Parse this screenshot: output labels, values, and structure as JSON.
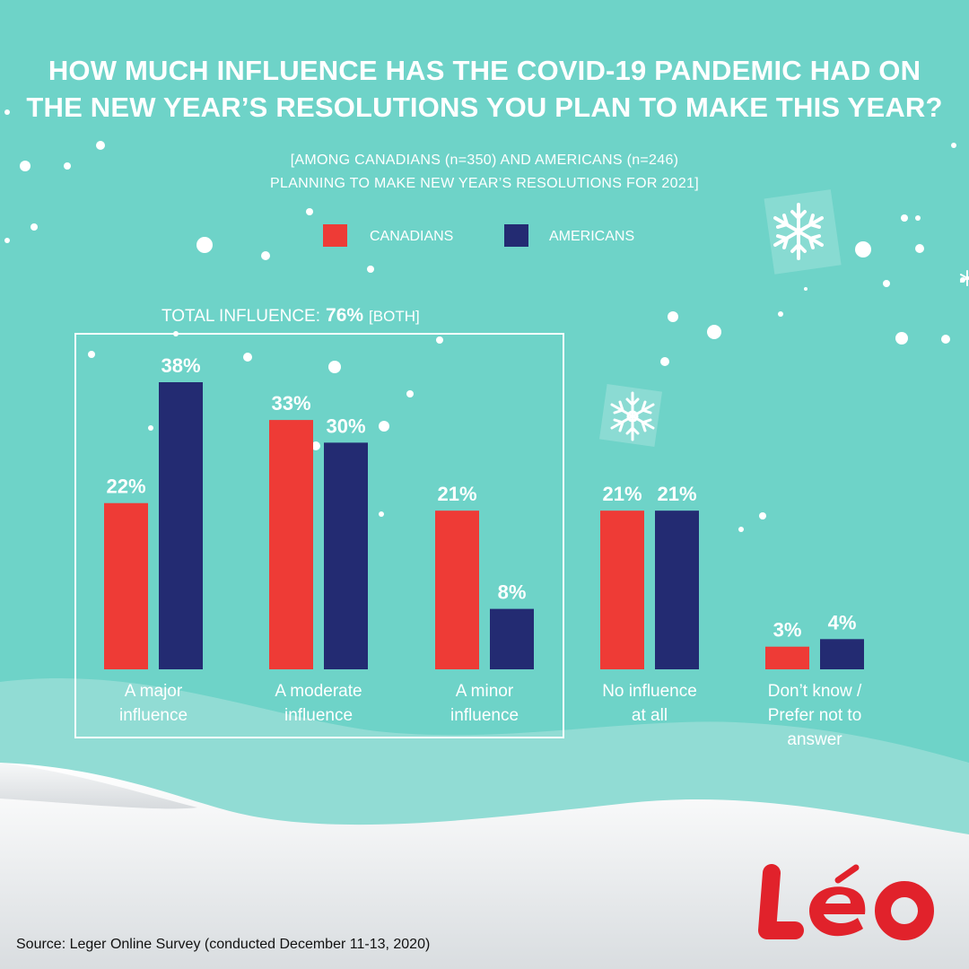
{
  "header": {
    "title_line1": "HOW MUCH INFLUENCE HAS THE COVID-19 PANDEMIC HAD ON",
    "title_line2": "THE NEW YEAR’S RESOLUTIONS YOU PLAN TO MAKE THIS YEAR?",
    "subtitle_line1": "[AMONG CANADIANS (n=350) AND AMERICANS (n=246)",
    "subtitle_line2": "PLANNING TO MAKE NEW YEAR’S RESOLUTIONS FOR 2021]"
  },
  "total_influence": {
    "label": "TOTAL INFLUENCE:",
    "value": "76%",
    "note": "[BOTH]"
  },
  "source": "Source: Leger Online Survey (conducted December 11-13, 2020)",
  "logo_text": "Léo",
  "colors": {
    "canadians": "#ee3b36",
    "americans": "#232b72",
    "background": "#6ed3c8",
    "text": "#ffffff"
  },
  "chart_data": {
    "type": "bar",
    "categories": [
      [
        "A major",
        "influence"
      ],
      [
        "A moderate",
        "influence"
      ],
      [
        "A minor",
        "influence"
      ],
      [
        "No influence",
        "at all"
      ],
      [
        "Don’t know /",
        "Prefer not to",
        "answer"
      ]
    ],
    "series": [
      {
        "name": "CANADIANS",
        "values": [
          22,
          33,
          21,
          21,
          3
        ],
        "labels": [
          "22%",
          "33%",
          "21%",
          "21%",
          "3%"
        ],
        "color": "#ee3b36"
      },
      {
        "name": "AMERICANS",
        "values": [
          38,
          30,
          8,
          21,
          4
        ],
        "labels": [
          "38%",
          "30%",
          "8%",
          "21%",
          "4%"
        ],
        "color": "#232b72"
      }
    ],
    "ylim": [
      0,
      38
    ],
    "legend": "top-center",
    "grid": false
  }
}
